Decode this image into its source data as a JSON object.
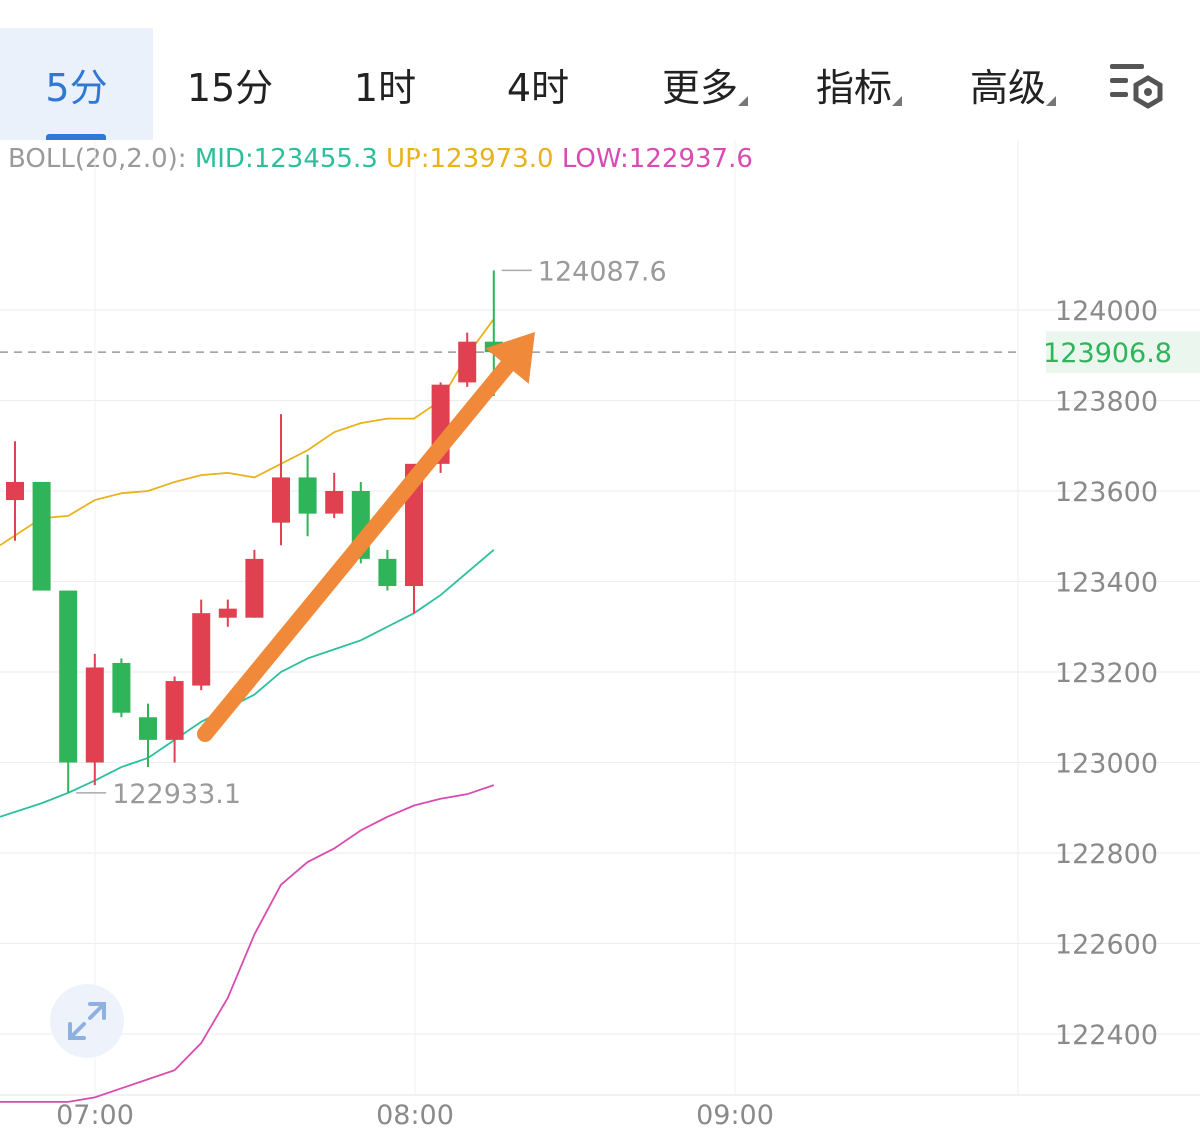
{
  "tabs": [
    {
      "label": "5分",
      "active": true
    },
    {
      "label": "15分",
      "active": false
    },
    {
      "label": "1时",
      "active": false
    },
    {
      "label": "4时",
      "active": false
    },
    {
      "label": "更多",
      "active": false,
      "dropdown": true
    },
    {
      "label": "指标",
      "active": false,
      "dropdown": true
    },
    {
      "label": "高级",
      "active": false,
      "dropdown": true
    }
  ],
  "settings_icon": "chart-settings-icon",
  "indicator": {
    "name": "BOLL(20,2.0):",
    "mid": "MID:123455.3",
    "up": "UP:123973.0",
    "low": "LOW:122937.6",
    "colors": {
      "name": "#9a9a9a",
      "mid": "#2bbf9e",
      "up": "#e8b21a",
      "low": "#d94bb1"
    }
  },
  "chart_data": {
    "type": "candlestick",
    "ylim": [
      122200,
      124300
    ],
    "y_ticks": [
      "124000",
      "123800",
      "123600",
      "123400",
      "123200",
      "123000",
      "122800",
      "122600",
      "122400"
    ],
    "x_ticks": [
      "07:00",
      "08:00",
      "09:00"
    ],
    "current_price": "123906.8",
    "high_label": "124087.6",
    "low_label": "122933.1",
    "colors": {
      "up": "#e04050",
      "down": "#2fb45a",
      "mid": "#2bbf9e",
      "upper": "#e8b21a",
      "lower": "#d94bb1",
      "arrow": "#f08a3a"
    },
    "candles": [
      {
        "o": 123580,
        "c": 123620,
        "h": 123710,
        "l": 123490
      },
      {
        "o": 123620,
        "c": 123380,
        "h": 123620,
        "l": 123380
      },
      {
        "o": 123380,
        "c": 123000,
        "h": 123380,
        "l": 122933
      },
      {
        "o": 123000,
        "c": 123210,
        "h": 123240,
        "l": 122950
      },
      {
        "o": 123220,
        "c": 123110,
        "h": 123230,
        "l": 123100
      },
      {
        "o": 123100,
        "c": 123050,
        "h": 123130,
        "l": 122990
      },
      {
        "o": 123050,
        "c": 123180,
        "h": 123190,
        "l": 123000
      },
      {
        "o": 123170,
        "c": 123330,
        "h": 123360,
        "l": 123160
      },
      {
        "o": 123320,
        "c": 123340,
        "h": 123360,
        "l": 123300
      },
      {
        "o": 123320,
        "c": 123450,
        "h": 123470,
        "l": 123320
      },
      {
        "o": 123530,
        "c": 123630,
        "h": 123770,
        "l": 123480
      },
      {
        "o": 123630,
        "c": 123550,
        "h": 123680,
        "l": 123500
      },
      {
        "o": 123550,
        "c": 123600,
        "h": 123640,
        "l": 123540
      },
      {
        "o": 123600,
        "c": 123450,
        "h": 123620,
        "l": 123440
      },
      {
        "o": 123450,
        "c": 123390,
        "h": 123470,
        "l": 123380
      },
      {
        "o": 123390,
        "c": 123660,
        "h": 123660,
        "l": 123330
      },
      {
        "o": 123660,
        "c": 123835,
        "h": 123840,
        "l": 123640
      },
      {
        "o": 123840,
        "c": 123930,
        "h": 123950,
        "l": 123830
      },
      {
        "o": 123930,
        "c": 123906.8,
        "h": 124087.6,
        "l": 123810
      }
    ],
    "mid_band": [
      122880,
      122910,
      122933,
      122960,
      122990,
      123010,
      123050,
      123090,
      123120,
      123150,
      123200,
      123230,
      123250,
      123270,
      123300,
      123330,
      123370,
      123420,
      123470
    ],
    "upper_band": [
      123480,
      123540,
      123545,
      123580,
      123595,
      123600,
      123620,
      123635,
      123640,
      123630,
      123660,
      123690,
      123730,
      123750,
      123760,
      123760,
      123800,
      123900,
      123980
    ],
    "lower_band": [
      122250,
      122250,
      122250,
      122260,
      122280,
      122300,
      122320,
      122380,
      122480,
      122620,
      122730,
      122780,
      122810,
      122850,
      122880,
      122905,
      122920,
      122930,
      122950
    ]
  }
}
